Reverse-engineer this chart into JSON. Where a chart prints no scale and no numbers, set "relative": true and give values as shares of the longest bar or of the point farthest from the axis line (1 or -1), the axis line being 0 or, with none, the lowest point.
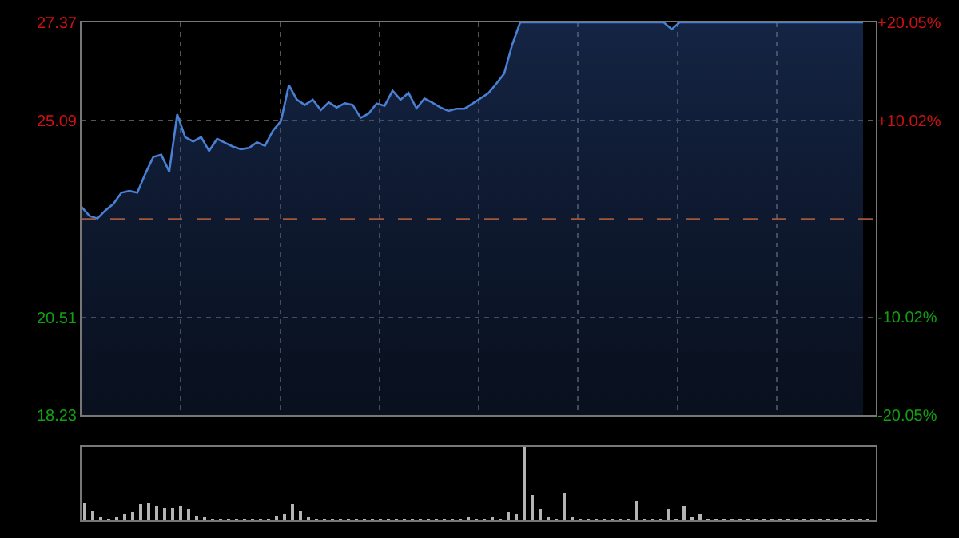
{
  "chart_data": [
    {
      "type": "area",
      "categories": [
        null,
        null,
        null,
        null,
        null,
        null,
        null,
        null,
        null,
        null,
        null,
        null,
        null,
        null,
        null,
        null,
        null,
        null,
        null,
        null,
        null,
        null,
        null,
        null,
        null,
        null,
        null,
        null,
        null,
        null,
        null,
        null,
        null,
        null,
        null,
        null,
        null,
        null,
        null,
        null,
        null,
        null,
        null,
        null,
        null,
        null,
        null,
        null,
        null,
        null,
        null,
        null,
        null,
        null,
        null,
        null,
        null,
        null,
        null,
        null,
        null,
        null,
        null,
        null,
        null,
        null,
        null,
        null,
        null,
        null,
        null,
        null,
        null,
        null,
        null,
        null,
        null,
        null,
        null,
        null,
        null,
        null,
        null,
        null,
        null,
        null,
        null,
        null,
        null,
        null,
        null,
        null,
        null,
        null,
        null,
        null,
        null,
        null,
        null
      ],
      "series": [
        {
          "color": "#4a80d4",
          "values": [
            23.08,
            22.87,
            22.81,
            23.0,
            23.15,
            23.41,
            23.45,
            23.41,
            23.85,
            24.24,
            24.29,
            23.9,
            25.23,
            24.7,
            24.6,
            24.7,
            24.38,
            24.66,
            24.57,
            24.48,
            24.42,
            24.45,
            24.58,
            24.5,
            24.85,
            25.07,
            25.91,
            25.57,
            25.45,
            25.57,
            25.33,
            25.51,
            25.39,
            25.49,
            25.45,
            25.15,
            25.25,
            25.48,
            25.43,
            25.78,
            25.57,
            25.73,
            25.37,
            25.6,
            25.5,
            25.39,
            25.31,
            25.36,
            25.36,
            25.48,
            25.6,
            25.72,
            25.94,
            26.18,
            26.85,
            27.37,
            27.37,
            27.37,
            27.37,
            27.37,
            27.37,
            27.37,
            27.37,
            27.37,
            27.37,
            27.37,
            27.37,
            27.37,
            27.37,
            27.37,
            27.37,
            27.37,
            27.37,
            27.37,
            27.21,
            27.37,
            27.37,
            27.37,
            27.37,
            27.37,
            27.37,
            27.37,
            27.37,
            27.37,
            27.37,
            27.37,
            27.37,
            27.37,
            27.37,
            27.37,
            27.37,
            27.37,
            27.37,
            27.37,
            27.37,
            27.37,
            27.37,
            27.37,
            27.37
          ]
        }
      ],
      "ylim": [
        18.23,
        27.37
      ],
      "yticks": [
        18.23,
        20.51,
        25.09,
        27.37
      ],
      "y2lim": [
        -20.05,
        20.05
      ],
      "y2ticks": [
        {
          "value": -20.05,
          "label": "-20.05%"
        },
        {
          "value": -10.02,
          "label": "-10.02%"
        },
        {
          "value": 10.02,
          "label": "+10.02%"
        },
        {
          "value": 20.05,
          "label": "+20.05%"
        }
      ],
      "ref_lines": [
        {
          "axis": "y",
          "value": 22.8,
          "color": "#a0583c",
          "line_style": "dashed"
        }
      ],
      "grid": true,
      "tick_labels": "y"
    },
    {
      "type": "bar",
      "relative": true,
      "categories": [
        null,
        null,
        null,
        null,
        null,
        null,
        null,
        null,
        null,
        null,
        null,
        null,
        null,
        null,
        null,
        null,
        null,
        null,
        null,
        null,
        null,
        null,
        null,
        null,
        null,
        null,
        null,
        null,
        null,
        null,
        null,
        null,
        null,
        null,
        null,
        null,
        null,
        null,
        null,
        null,
        null,
        null,
        null,
        null,
        null,
        null,
        null,
        null,
        null,
        null,
        null,
        null,
        null,
        null,
        null,
        null,
        null,
        null,
        null,
        null,
        null,
        null,
        null,
        null,
        null,
        null,
        null,
        null,
        null,
        null,
        null,
        null,
        null,
        null,
        null,
        null,
        null,
        null,
        null,
        null,
        null,
        null,
        null,
        null,
        null,
        null,
        null,
        null,
        null,
        null,
        null,
        null,
        null,
        null,
        null,
        null,
        null,
        null,
        null
      ],
      "series": [
        {
          "color": "#b4b4b4",
          "values": [
            0.24,
            0.14,
            0.05,
            0.03,
            0.05,
            0.08,
            0.12,
            0.22,
            0.24,
            0.2,
            0.18,
            0.18,
            0.2,
            0.15,
            0.06,
            0.04,
            0.03,
            0.02,
            0.03,
            0.02,
            0.02,
            0.02,
            0.02,
            0.03,
            0.06,
            0.08,
            0.22,
            0.14,
            0.05,
            0.03,
            0.02,
            0.03,
            0.02,
            0.02,
            0.03,
            0.02,
            0.02,
            0.03,
            0.02,
            0.02,
            0.03,
            0.02,
            0.02,
            0.02,
            0.03,
            0.02,
            0.02,
            0.03,
            0.04,
            0.03,
            0.03,
            0.04,
            0.03,
            0.12,
            0.08,
            1.0,
            0.35,
            0.15,
            0.05,
            0.03,
            0.37,
            0.04,
            0.03,
            0.02,
            0.02,
            0.02,
            0.03,
            0.02,
            0.02,
            0.26,
            0.03,
            0.02,
            0.03,
            0.15,
            0.03,
            0.19,
            0.04,
            0.08,
            0.03,
            0.02,
            0.02,
            0.02,
            0.03,
            0.02,
            0.02,
            0.02,
            0.02,
            0.02,
            0.03,
            0.02,
            0.02,
            0.02,
            0.02,
            0.02,
            0.02,
            0.02,
            0.02,
            0.02,
            0.02
          ]
        }
      ],
      "grid": false,
      "tick_labels": false
    }
  ]
}
